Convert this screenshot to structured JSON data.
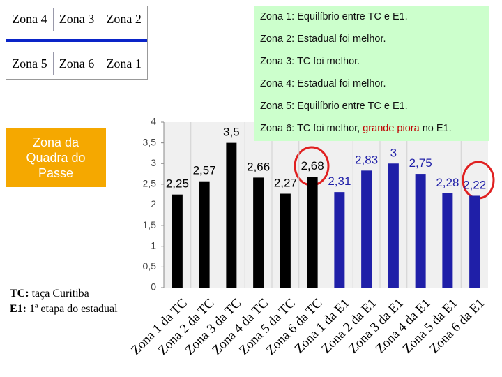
{
  "zones_table": {
    "rows": [
      [
        "Zona 4",
        "Zona 3",
        "Zona 2"
      ],
      [
        "Zona 5",
        "Zona 6",
        "Zona 1"
      ]
    ]
  },
  "highlight_box": "Zona da Quadra do Passe",
  "notes": [
    {
      "label": "Zona 1:",
      "text": "Equilíbrio entre TC e E1."
    },
    {
      "label": "Zona 2:",
      "text": "Estadual foi melhor."
    },
    {
      "label": "Zona 3:",
      "text": "TC foi melhor."
    },
    {
      "label": "Zona 4:",
      "text": "Estadual foi melhor."
    },
    {
      "label": "Zona 5:",
      "text": "Equilíbrio entre TC e E1."
    },
    {
      "label": "Zona 6:",
      "text": "TC foi melhor,",
      "highlight": "grande piora",
      "after": "no E1."
    }
  ],
  "legend_notes": [
    {
      "label": "TC:",
      "text": "taça Curitiba"
    },
    {
      "label": "E1:",
      "text": "1ª etapa do estadual"
    }
  ],
  "chart_data": {
    "type": "bar",
    "categories": [
      "Zona 1 da TC",
      "Zona 2 da TC",
      "Zona 3 da TC",
      "Zona 4 da TC",
      "Zona 5 da TC",
      "Zona 6 da TC",
      "Zona 1 da E1",
      "Zona 2 da E1",
      "Zona 3 da E1",
      "Zona 4 da E1",
      "Zona 5 da E1",
      "Zona 6 da E1"
    ],
    "values": [
      2.25,
      2.57,
      3.5,
      2.66,
      2.27,
      2.68,
      2.31,
      2.83,
      3,
      2.75,
      2.28,
      2.22
    ],
    "value_labels": [
      "2,25",
      "2,57",
      "3,5",
      "2,66",
      "2,27",
      "2,68",
      "2,31",
      "2,83",
      "3",
      "2,75",
      "2,28",
      "2,22"
    ],
    "colors": [
      "#000000",
      "#000000",
      "#000000",
      "#000000",
      "#000000",
      "#000000",
      "#1f1fa8",
      "#1f1fa8",
      "#1f1fa8",
      "#1f1fa8",
      "#1f1fa8",
      "#1f1fa8"
    ],
    "ylim": [
      0,
      4
    ],
    "yticks": [
      0,
      {
        "value": 0.5,
        "label": "0,5"
      },
      1,
      {
        "value": 1.5,
        "label": "1,5"
      },
      2,
      {
        "value": 2.5,
        "label": "2,5"
      },
      3,
      {
        "value": 3.5,
        "label": "3,5"
      },
      4
    ]
  }
}
